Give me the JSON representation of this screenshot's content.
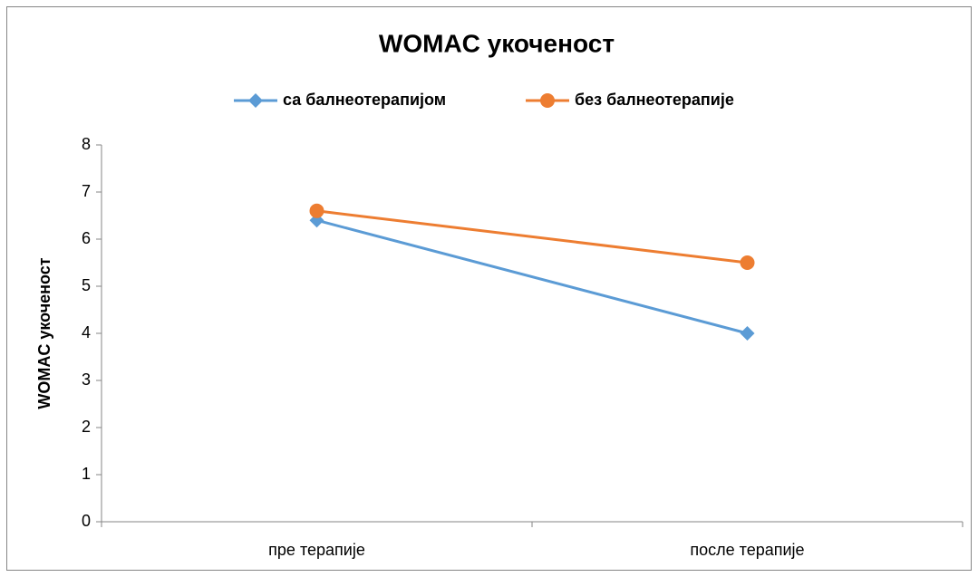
{
  "chart_data": {
    "type": "line",
    "title": "WOMAC укоченост",
    "y_label": "WOMAC укоченост",
    "categories": [
      "пре терапије",
      "после терапије"
    ],
    "series": [
      {
        "name": "са балнеотерапијом",
        "color": "#5b9bd5",
        "marker": "diamond",
        "values": [
          6.4,
          4.0
        ]
      },
      {
        "name": "без балнеотерапије",
        "color": "#ed7d31",
        "marker": "circle",
        "values": [
          6.6,
          5.5
        ]
      }
    ],
    "ylim": [
      0,
      8
    ],
    "yticks": [
      0,
      1,
      2,
      3,
      4,
      5,
      6,
      7,
      8
    ],
    "grid": false,
    "legend": "top"
  }
}
